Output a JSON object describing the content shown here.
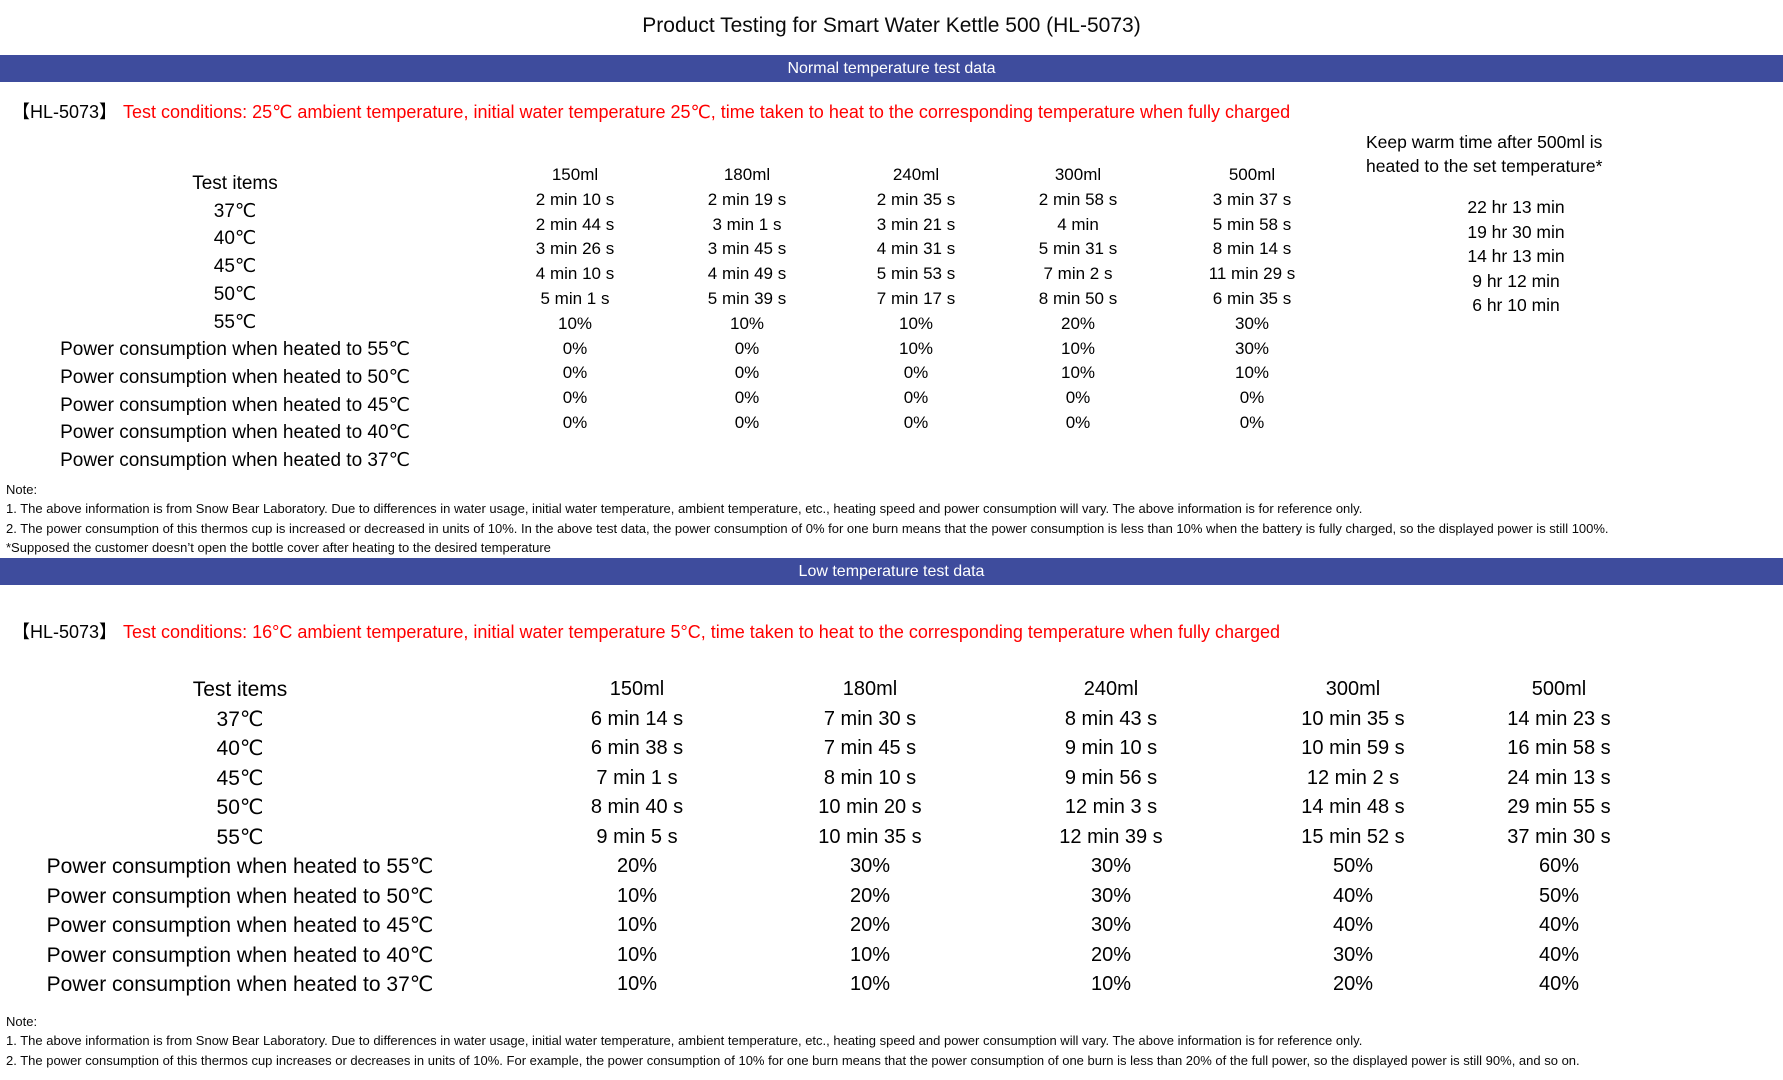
{
  "page": {
    "title": "Product Testing for Smart Water Kettle 500 (HL-5073)"
  },
  "colors": {
    "banner_bg": "#3E4C9D",
    "banner_text": "#FFFFFF",
    "condition_red": "#FF0000"
  },
  "banner1": {
    "label": "Normal temperature test data"
  },
  "banner2": {
    "label": "Low temperature test data"
  },
  "condition1": {
    "model": "【HL-5073】",
    "text": "Test conditions: 25℃ ambient temperature, initial water temperature 25℃, time taken to heat to the corresponding temperature when fully charged"
  },
  "condition2": {
    "model": "【HL-5073】",
    "text": "Test conditions: 16°C ambient temperature, initial water temperature 5°C, time taken to heat to the corresponding temperature when fully charged"
  },
  "table1": {
    "row_labels": [
      "Test items",
      "37℃",
      "40℃",
      "45℃",
      "50℃",
      "55℃",
      "Power consumption when heated to 55℃",
      "Power consumption when heated to 50℃",
      "Power consumption when heated to 45℃",
      "Power consumption when heated to 40℃",
      "Power consumption when heated to 37℃"
    ],
    "columns": [
      {
        "header": "150ml",
        "values": [
          "2 min 10 s",
          "2 min 44 s",
          "3 min 26 s",
          "4 min 10 s",
          "5 min 1 s",
          "10%",
          "0%",
          "0%",
          "0%",
          "0%"
        ]
      },
      {
        "header": "180ml",
        "values": [
          "2 min 19 s",
          "3 min 1 s",
          "3 min 45 s",
          "4 min 49 s",
          "5 min 39 s",
          "10%",
          "0%",
          "0%",
          "0%",
          "0%"
        ]
      },
      {
        "header": "240ml",
        "values": [
          "2 min 35 s",
          "3 min 21 s",
          "4 min 31 s",
          "5 min 53 s",
          "7 min 17 s",
          "10%",
          "10%",
          "0%",
          "0%",
          "0%"
        ]
      },
      {
        "header": "300ml",
        "values": [
          "2 min 58 s",
          "4 min",
          "5 min 31 s",
          "7 min 2 s",
          "8 min 50 s",
          "20%",
          "10%",
          "10%",
          "0%",
          "0%"
        ]
      },
      {
        "header": "500ml",
        "values": [
          "3 min 37 s",
          "5 min 58 s",
          "8 min 14 s",
          "11 min 29 s",
          "6 min 35 s",
          "30%",
          "30%",
          "10%",
          "0%",
          "0%"
        ]
      }
    ],
    "keep_warm": {
      "header_line1": "Keep warm time after 500ml is",
      "header_line2": "heated to the set temperature*",
      "values": [
        "22 hr 13 min",
        "19 hr 30 min",
        "14 hr 13 min",
        "9 hr 12 min",
        "6 hr 10 min"
      ]
    },
    "notes": [
      "Note:",
      "1. The above information is from Snow Bear Laboratory. Due to differences in water usage, initial water temperature, ambient temperature, etc., heating speed and power consumption will vary. The above information is for reference only.",
      "2. The power consumption of this thermos cup is increased or decreased in units of 10%. In the above test data, the power consumption of 0% for one burn means that the power consumption is less than 10% when the battery is fully charged, so the displayed power is still 100%.",
      "*Supposed the customer doesn’t open the bottle cover after heating to the desired temperature"
    ]
  },
  "table2": {
    "row_labels": [
      "Test items",
      "37℃",
      "40℃",
      "45℃",
      "50℃",
      "55℃",
      "Power consumption when heated to 55℃",
      "Power consumption when heated to 50℃",
      "Power consumption when heated to 45℃",
      "Power consumption when heated to 40℃",
      "Power consumption when heated to 37℃"
    ],
    "columns": [
      {
        "header": "150ml",
        "values": [
          "6 min 14 s",
          "6 min 38 s",
          "7 min 1 s",
          "8 min 40 s",
          "9 min 5 s",
          "20%",
          "10%",
          "10%",
          "10%",
          "10%"
        ]
      },
      {
        "header": "180ml",
        "values": [
          "7 min 30 s",
          "7 min 45 s",
          "8 min 10 s",
          "10 min 20 s",
          "10 min 35 s",
          "30%",
          "20%",
          "20%",
          "10%",
          "10%"
        ]
      },
      {
        "header": "240ml",
        "values": [
          "8 min 43 s",
          "9 min 10 s",
          "9 min 56 s",
          "12 min 3 s",
          "12 min 39 s",
          "30%",
          "30%",
          "30%",
          "20%",
          "10%"
        ]
      },
      {
        "header": "300ml",
        "values": [
          "10 min 35 s",
          "10 min 59 s",
          "12 min 2 s",
          "14 min 48 s",
          "15 min 52 s",
          "50%",
          "40%",
          "40%",
          "30%",
          "20%"
        ]
      },
      {
        "header": "500ml",
        "values": [
          "14 min 23 s",
          "16 min 58 s",
          "24 min 13 s",
          "29 min 55 s",
          "37 min 30 s",
          "60%",
          "50%",
          "40%",
          "40%",
          "40%"
        ]
      }
    ],
    "notes": [
      "Note:",
      "1. The above information is from Snow Bear Laboratory. Due to differences in water usage, initial water temperature, ambient temperature, etc., heating speed and power consumption will vary. The above information is for reference only.",
      "2. The power consumption of this thermos cup increases or decreases in units of 10%. For example, the power consumption of 10% for one burn means that the power consumption of one burn is less than 20% of the full power, so the displayed power is still 90%, and so on."
    ]
  }
}
